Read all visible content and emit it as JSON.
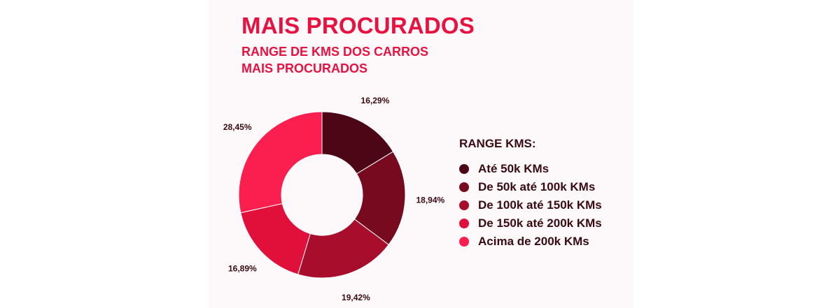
{
  "header": {
    "title": "MAIS PROCURADOS",
    "subtitle_line1": "RANGE DE KMS DOS CARROS",
    "subtitle_line2": "MAIS PROCURADOS"
  },
  "chart_data": {
    "type": "pie",
    "style": "donut",
    "legend_title": "RANGE KMS:",
    "legend_position": "right",
    "categories": [
      "Até 50k KMs",
      "De 50k até 100k KMs",
      "De 100k até 150k KMs",
      "De 150k até 200k KMs",
      "Acima de 200k KMs"
    ],
    "values": [
      16.29,
      18.94,
      19.42,
      16.89,
      28.45
    ],
    "value_labels": [
      "16,29%",
      "18,94%",
      "19,42%",
      "16,89%",
      "28,45%"
    ],
    "colors": [
      "#4d0615",
      "#780a1f",
      "#a80e2c",
      "#e0103b",
      "#fa1f4f"
    ]
  }
}
